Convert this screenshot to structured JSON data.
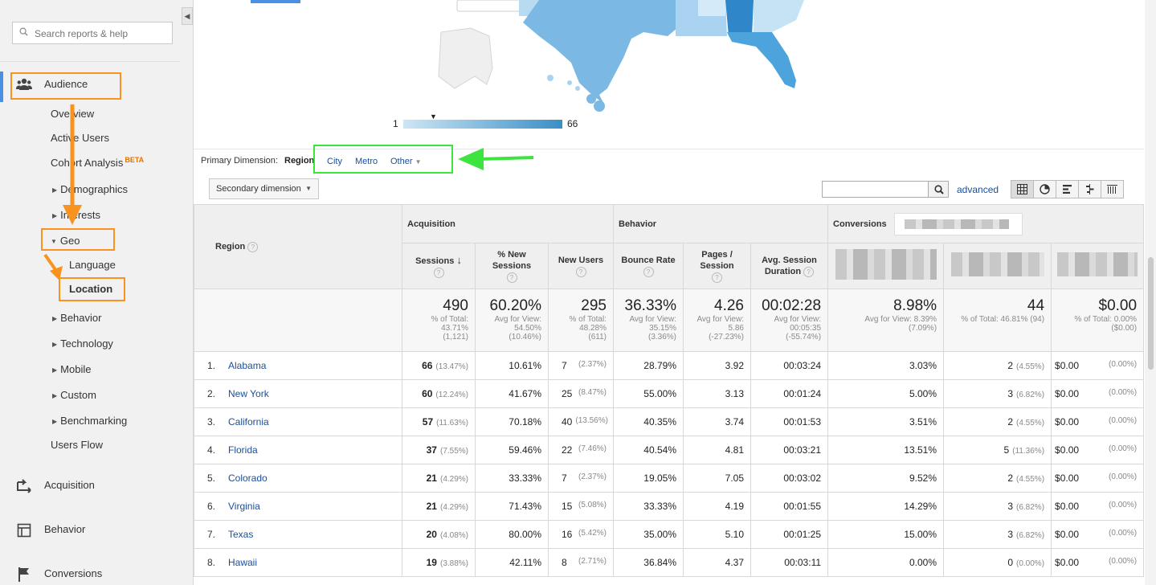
{
  "sidebar": {
    "search_placeholder": "Search reports & help",
    "audience": "Audience",
    "overview": "Overview",
    "active_users": "Active Users",
    "cohort_analysis": "Cohort Analysis",
    "cohort_badge": "BETA",
    "demographics": "Demographics",
    "interests": "Interests",
    "geo": "Geo",
    "language": "Language",
    "location": "Location",
    "behavior_sub": "Behavior",
    "technology": "Technology",
    "mobile": "Mobile",
    "custom": "Custom",
    "benchmarking": "Benchmarking",
    "users_flow": "Users Flow",
    "acquisition": "Acquisition",
    "behavior": "Behavior",
    "conversions": "Conversions"
  },
  "map": {
    "legend_min": "1",
    "legend_max": "66"
  },
  "dimension": {
    "label": "Primary Dimension:",
    "region": "Region",
    "city": "City",
    "metro": "Metro",
    "other": "Other"
  },
  "toolbar": {
    "secondary_dimension": "Secondary dimension",
    "advanced": "advanced"
  },
  "table": {
    "region_header": "Region",
    "groups": {
      "acquisition": "Acquisition",
      "behavior": "Behavior",
      "conversions": "Conversions"
    },
    "columns": {
      "sessions": "Sessions",
      "new_sessions_1": "% New",
      "new_sessions_2": "Sessions",
      "new_users": "New Users",
      "bounce_rate": "Bounce Rate",
      "pages_1": "Pages /",
      "pages_2": "Session",
      "duration_1": "Avg. Session",
      "duration_2": "Duration"
    },
    "totals": {
      "sessions": "490",
      "sessions_sub1": "% of Total:",
      "sessions_sub2": "43.71%",
      "sessions_sub3": "(1,121)",
      "new_sessions": "60.20%",
      "new_sessions_sub1": "Avg for View:",
      "new_sessions_sub2": "54.50%",
      "new_sessions_sub3": "(10.46%)",
      "new_users": "295",
      "new_users_sub1": "% of Total:",
      "new_users_sub2": "48.28%",
      "new_users_sub3": "(611)",
      "bounce": "36.33%",
      "bounce_sub1": "Avg for View:",
      "bounce_sub2": "35.15%",
      "bounce_sub3": "(3.36%)",
      "pages": "4.26",
      "pages_sub1": "Avg for View:",
      "pages_sub2": "5.86",
      "pages_sub3": "(-27.23%)",
      "duration": "00:02:28",
      "duration_sub1": "Avg for View:",
      "duration_sub2": "00:05:35",
      "duration_sub3": "(-55.74%)",
      "conv_rate": "8.98%",
      "conv_rate_sub1": "Avg for View: 8.39%",
      "conv_rate_sub2": "(7.09%)",
      "goal_comp": "44",
      "goal_comp_sub1": "% of Total: 46.81% (94)",
      "goal_value": "$0.00",
      "goal_value_sub1": "% of Total: 0.00%",
      "goal_value_sub2": "($0.00)"
    },
    "rows": [
      {
        "idx": "1.",
        "region": "Alabama",
        "sessions": "66",
        "sessions_pct": "(13.47%)",
        "new_sessions": "10.61%",
        "new_users": "7",
        "new_users_pct": "(2.37%)",
        "bounce": "28.79%",
        "pages": "3.92",
        "duration": "00:03:24",
        "conv_rate": "3.03%",
        "goal": "2",
        "goal_pct": "(4.55%)",
        "value": "$0.00",
        "value_pct": "(0.00%)"
      },
      {
        "idx": "2.",
        "region": "New York",
        "sessions": "60",
        "sessions_pct": "(12.24%)",
        "new_sessions": "41.67%",
        "new_users": "25",
        "new_users_pct": "(8.47%)",
        "bounce": "55.00%",
        "pages": "3.13",
        "duration": "00:01:24",
        "conv_rate": "5.00%",
        "goal": "3",
        "goal_pct": "(6.82%)",
        "value": "$0.00",
        "value_pct": "(0.00%)"
      },
      {
        "idx": "3.",
        "region": "California",
        "sessions": "57",
        "sessions_pct": "(11.63%)",
        "new_sessions": "70.18%",
        "new_users": "40",
        "new_users_pct": "(13.56%)",
        "bounce": "40.35%",
        "pages": "3.74",
        "duration": "00:01:53",
        "conv_rate": "3.51%",
        "goal": "2",
        "goal_pct": "(4.55%)",
        "value": "$0.00",
        "value_pct": "(0.00%)"
      },
      {
        "idx": "4.",
        "region": "Florida",
        "sessions": "37",
        "sessions_pct": "(7.55%)",
        "new_sessions": "59.46%",
        "new_users": "22",
        "new_users_pct": "(7.46%)",
        "bounce": "40.54%",
        "pages": "4.81",
        "duration": "00:03:21",
        "conv_rate": "13.51%",
        "goal": "5",
        "goal_pct": "(11.36%)",
        "value": "$0.00",
        "value_pct": "(0.00%)"
      },
      {
        "idx": "5.",
        "region": "Colorado",
        "sessions": "21",
        "sessions_pct": "(4.29%)",
        "new_sessions": "33.33%",
        "new_users": "7",
        "new_users_pct": "(2.37%)",
        "bounce": "19.05%",
        "pages": "7.05",
        "duration": "00:03:02",
        "conv_rate": "9.52%",
        "goal": "2",
        "goal_pct": "(4.55%)",
        "value": "$0.00",
        "value_pct": "(0.00%)"
      },
      {
        "idx": "6.",
        "region": "Virginia",
        "sessions": "21",
        "sessions_pct": "(4.29%)",
        "new_sessions": "71.43%",
        "new_users": "15",
        "new_users_pct": "(5.08%)",
        "bounce": "33.33%",
        "pages": "4.19",
        "duration": "00:01:55",
        "conv_rate": "14.29%",
        "goal": "3",
        "goal_pct": "(6.82%)",
        "value": "$0.00",
        "value_pct": "(0.00%)"
      },
      {
        "idx": "7.",
        "region": "Texas",
        "sessions": "20",
        "sessions_pct": "(4.08%)",
        "new_sessions": "80.00%",
        "new_users": "16",
        "new_users_pct": "(5.42%)",
        "bounce": "35.00%",
        "pages": "5.10",
        "duration": "00:01:25",
        "conv_rate": "15.00%",
        "goal": "3",
        "goal_pct": "(6.82%)",
        "value": "$0.00",
        "value_pct": "(0.00%)"
      },
      {
        "idx": "8.",
        "region": "Hawaii",
        "sessions": "19",
        "sessions_pct": "(3.88%)",
        "new_sessions": "42.11%",
        "new_users": "8",
        "new_users_pct": "(2.71%)",
        "bounce": "36.84%",
        "pages": "4.37",
        "duration": "00:03:11",
        "conv_rate": "0.00%",
        "goal": "0",
        "goal_pct": "(0.00%)",
        "value": "$0.00",
        "value_pct": "(0.00%)"
      }
    ]
  },
  "colors": {
    "accent": "#4a90e2",
    "link": "#1a4e9b",
    "annotation_orange": "#f7931e",
    "annotation_green": "#3ee43e"
  }
}
